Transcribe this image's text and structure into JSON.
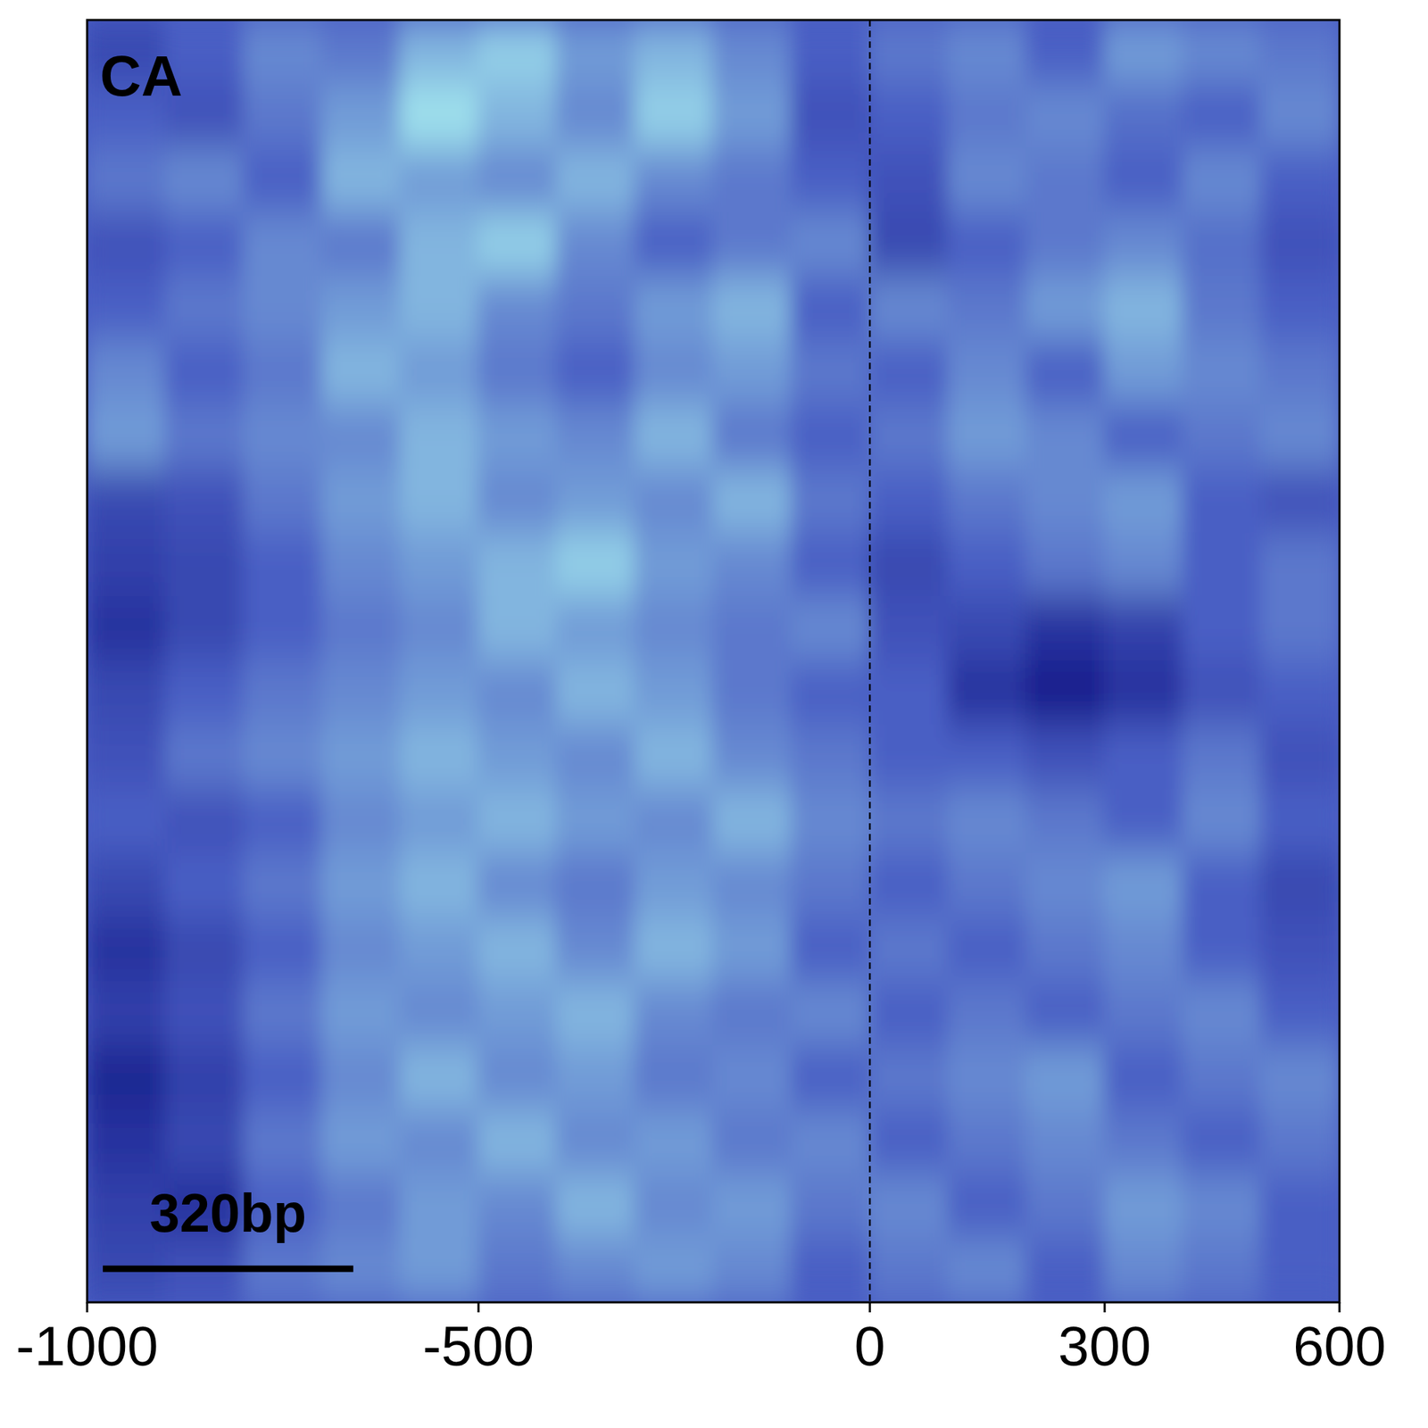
{
  "chart_data": {
    "type": "heatmap",
    "title": "CA",
    "xlim": [
      -1000,
      600
    ],
    "xticks": [
      -1000,
      -500,
      0,
      300,
      600
    ],
    "tick_labels": "x",
    "vline": 0,
    "scale_bar": {
      "label": "320bp",
      "length": 320
    },
    "value_range": [
      0.3,
      0.6
    ],
    "x_bins": [
      -1000,
      -900,
      -800,
      -700,
      -600,
      -500,
      -400,
      -300,
      -200,
      -100,
      0,
      100,
      200,
      300,
      400,
      500,
      600
    ],
    "cells": [
      [
        0.4,
        0.45,
        0.5,
        0.48,
        0.55,
        0.58,
        0.52,
        0.55,
        0.5,
        0.45,
        0.48,
        0.5,
        0.45,
        0.52,
        0.5,
        0.48
      ],
      [
        0.45,
        0.42,
        0.48,
        0.52,
        0.6,
        0.55,
        0.5,
        0.58,
        0.52,
        0.42,
        0.45,
        0.48,
        0.5,
        0.47,
        0.45,
        0.5
      ],
      [
        0.48,
        0.5,
        0.45,
        0.55,
        0.52,
        0.5,
        0.55,
        0.5,
        0.48,
        0.45,
        0.42,
        0.5,
        0.48,
        0.45,
        0.5,
        0.45
      ],
      [
        0.42,
        0.45,
        0.5,
        0.48,
        0.55,
        0.58,
        0.5,
        0.45,
        0.48,
        0.5,
        0.4,
        0.45,
        0.48,
        0.5,
        0.47,
        0.42
      ],
      [
        0.45,
        0.48,
        0.5,
        0.52,
        0.55,
        0.5,
        0.48,
        0.52,
        0.55,
        0.45,
        0.5,
        0.48,
        0.52,
        0.55,
        0.48,
        0.45
      ],
      [
        0.5,
        0.45,
        0.48,
        0.55,
        0.52,
        0.48,
        0.45,
        0.5,
        0.52,
        0.48,
        0.45,
        0.5,
        0.45,
        0.52,
        0.5,
        0.48
      ],
      [
        0.52,
        0.48,
        0.5,
        0.5,
        0.55,
        0.52,
        0.5,
        0.55,
        0.48,
        0.45,
        0.48,
        0.52,
        0.5,
        0.45,
        0.48,
        0.5
      ],
      [
        0.4,
        0.42,
        0.48,
        0.52,
        0.55,
        0.5,
        0.52,
        0.5,
        0.55,
        0.48,
        0.45,
        0.48,
        0.5,
        0.52,
        0.45,
        0.42
      ],
      [
        0.38,
        0.4,
        0.45,
        0.5,
        0.52,
        0.55,
        0.58,
        0.52,
        0.5,
        0.45,
        0.4,
        0.45,
        0.48,
        0.5,
        0.45,
        0.48
      ],
      [
        0.35,
        0.4,
        0.45,
        0.48,
        0.5,
        0.55,
        0.52,
        0.5,
        0.48,
        0.5,
        0.42,
        0.4,
        0.35,
        0.38,
        0.45,
        0.48
      ],
      [
        0.4,
        0.45,
        0.48,
        0.5,
        0.52,
        0.5,
        0.55,
        0.52,
        0.48,
        0.45,
        0.45,
        0.35,
        0.3,
        0.35,
        0.42,
        0.45
      ],
      [
        0.42,
        0.48,
        0.5,
        0.52,
        0.55,
        0.52,
        0.5,
        0.55,
        0.5,
        0.48,
        0.45,
        0.45,
        0.42,
        0.45,
        0.48,
        0.42
      ],
      [
        0.45,
        0.42,
        0.45,
        0.5,
        0.52,
        0.55,
        0.52,
        0.5,
        0.55,
        0.5,
        0.48,
        0.5,
        0.48,
        0.45,
        0.5,
        0.45
      ],
      [
        0.4,
        0.45,
        0.48,
        0.52,
        0.55,
        0.5,
        0.48,
        0.52,
        0.5,
        0.48,
        0.45,
        0.48,
        0.5,
        0.52,
        0.45,
        0.4
      ],
      [
        0.35,
        0.4,
        0.45,
        0.5,
        0.52,
        0.55,
        0.5,
        0.55,
        0.52,
        0.45,
        0.48,
        0.45,
        0.48,
        0.5,
        0.45,
        0.42
      ],
      [
        0.38,
        0.42,
        0.48,
        0.52,
        0.5,
        0.52,
        0.55,
        0.5,
        0.48,
        0.5,
        0.45,
        0.48,
        0.45,
        0.48,
        0.5,
        0.45
      ],
      [
        0.32,
        0.38,
        0.45,
        0.5,
        0.55,
        0.5,
        0.52,
        0.48,
        0.5,
        0.45,
        0.48,
        0.5,
        0.52,
        0.45,
        0.48,
        0.5
      ],
      [
        0.35,
        0.4,
        0.48,
        0.52,
        0.5,
        0.55,
        0.5,
        0.52,
        0.48,
        0.5,
        0.45,
        0.48,
        0.5,
        0.48,
        0.45,
        0.48
      ],
      [
        0.38,
        0.35,
        0.45,
        0.48,
        0.52,
        0.5,
        0.55,
        0.5,
        0.52,
        0.48,
        0.5,
        0.45,
        0.48,
        0.52,
        0.5,
        0.45
      ],
      [
        0.4,
        0.42,
        0.48,
        0.5,
        0.52,
        0.48,
        0.5,
        0.52,
        0.5,
        0.45,
        0.48,
        0.5,
        0.45,
        0.5,
        0.48,
        0.45
      ]
    ]
  }
}
